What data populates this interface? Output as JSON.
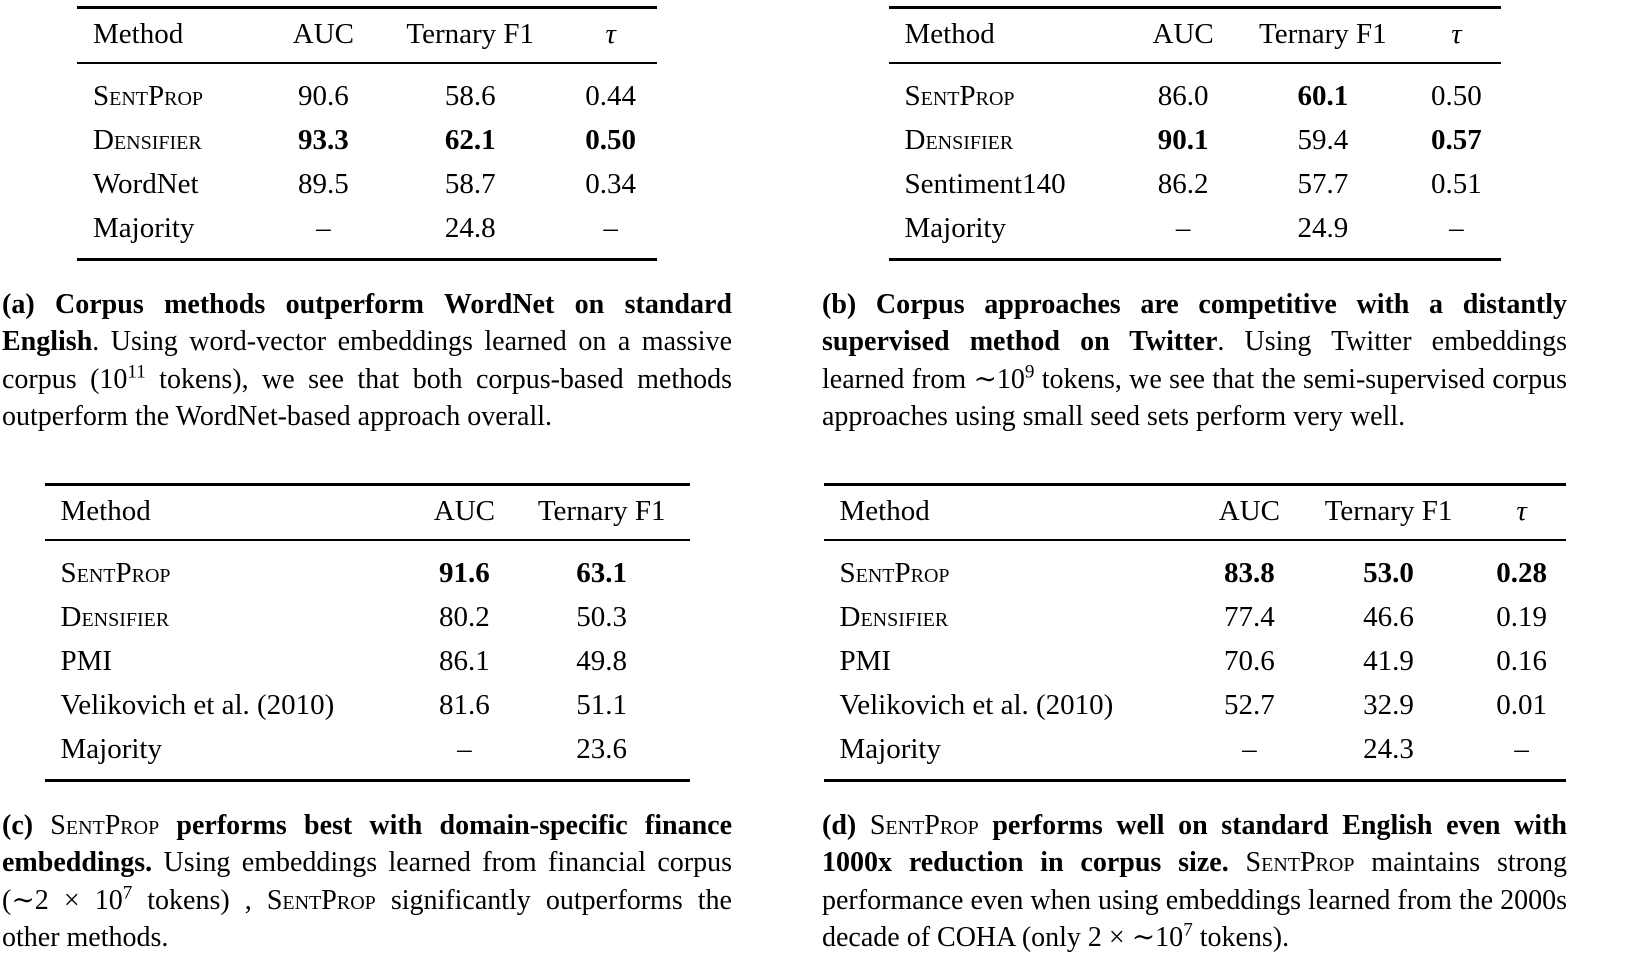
{
  "page": {
    "background": "#ffffff",
    "text_color": "#000000"
  },
  "tables": {
    "a": {
      "columns": [
        {
          "v": "Method"
        },
        {
          "v": "AUC"
        },
        {
          "v": "Ternary F1"
        },
        {
          "v": "τ",
          "i": true,
          "name": "tau"
        }
      ],
      "rows": [
        [
          {
            "v": "SentProp",
            "sc": true
          },
          {
            "v": "90.6"
          },
          {
            "v": "58.6"
          },
          {
            "v": "0.44"
          }
        ],
        [
          {
            "v": "Densifier",
            "sc": true
          },
          {
            "v": "93.3",
            "b": true
          },
          {
            "v": "62.1",
            "b": true
          },
          {
            "v": "0.50",
            "b": true
          }
        ],
        [
          {
            "v": "WordNet"
          },
          {
            "v": "89.5"
          },
          {
            "v": "58.7"
          },
          {
            "v": "0.34"
          }
        ],
        [
          {
            "v": "Majority"
          },
          {
            "v": "–"
          },
          {
            "v": "24.8"
          },
          {
            "v": "–"
          }
        ]
      ]
    },
    "b": {
      "columns": [
        {
          "v": "Method"
        },
        {
          "v": "AUC"
        },
        {
          "v": "Ternary F1"
        },
        {
          "v": "τ",
          "i": true,
          "name": "tau"
        }
      ],
      "rows": [
        [
          {
            "v": "SentProp",
            "sc": true
          },
          {
            "v": "86.0"
          },
          {
            "v": "60.1",
            "b": true
          },
          {
            "v": "0.50"
          }
        ],
        [
          {
            "v": "Densifier",
            "sc": true
          },
          {
            "v": "90.1",
            "b": true
          },
          {
            "v": "59.4"
          },
          {
            "v": "0.57",
            "b": true
          }
        ],
        [
          {
            "v": "Sentiment140"
          },
          {
            "v": "86.2"
          },
          {
            "v": "57.7"
          },
          {
            "v": "0.51"
          }
        ],
        [
          {
            "v": "Majority"
          },
          {
            "v": "–"
          },
          {
            "v": "24.9"
          },
          {
            "v": "–"
          }
        ]
      ]
    },
    "c": {
      "columns": [
        {
          "v": "Method"
        },
        {
          "v": "AUC"
        },
        {
          "v": "Ternary F1"
        }
      ],
      "rows": [
        [
          {
            "v": "SentProp",
            "sc": true
          },
          {
            "v": "91.6",
            "b": true
          },
          {
            "v": "63.1",
            "b": true
          }
        ],
        [
          {
            "v": "Densifier",
            "sc": true
          },
          {
            "v": "80.2"
          },
          {
            "v": "50.3"
          }
        ],
        [
          {
            "v": "PMI"
          },
          {
            "v": "86.1"
          },
          {
            "v": "49.8"
          }
        ],
        [
          {
            "v": "Velikovich et al. (2010)"
          },
          {
            "v": "81.6"
          },
          {
            "v": "51.1"
          }
        ],
        [
          {
            "v": "Majority"
          },
          {
            "v": "–"
          },
          {
            "v": "23.6"
          }
        ]
      ]
    },
    "d": {
      "columns": [
        {
          "v": "Method"
        },
        {
          "v": "AUC"
        },
        {
          "v": "Ternary F1"
        },
        {
          "v": "τ",
          "i": true,
          "name": "tau"
        }
      ],
      "rows": [
        [
          {
            "v": "SentProp",
            "sc": true
          },
          {
            "v": "83.8",
            "b": true
          },
          {
            "v": "53.0",
            "b": true
          },
          {
            "v": "0.28",
            "b": true
          }
        ],
        [
          {
            "v": "Densifier",
            "sc": true
          },
          {
            "v": "77.4"
          },
          {
            "v": "46.6"
          },
          {
            "v": "0.19"
          }
        ],
        [
          {
            "v": "PMI"
          },
          {
            "v": "70.6"
          },
          {
            "v": "41.9"
          },
          {
            "v": "0.16"
          }
        ],
        [
          {
            "v": "Velikovich et al. (2010)"
          },
          {
            "v": "52.7"
          },
          {
            "v": "32.9"
          },
          {
            "v": "0.01"
          }
        ],
        [
          {
            "v": "Majority"
          },
          {
            "v": "–"
          },
          {
            "v": "24.3"
          },
          {
            "v": "–"
          }
        ]
      ]
    }
  },
  "captions": {
    "a": [
      {
        "t": "(a) Corpus methods outperform WordNet on standard English",
        "b": true
      },
      {
        "t": ". Using word-vector embeddings learned on a massive corpus (10"
      },
      {
        "t": "11",
        "sup": true
      },
      {
        "t": " tokens), we see that both corpus-based methods outperform the WordNet-based approach overall."
      }
    ],
    "b": [
      {
        "t": "(b) Corpus approaches are competitive with a distantly supervised method on Twitter",
        "b": true
      },
      {
        "t": ". Using Twitter embeddings learned from ∼10"
      },
      {
        "t": "9",
        "sup": true
      },
      {
        "t": " tokens, we see that the semi-supervised corpus approaches using small seed sets perform very well."
      }
    ],
    "c": [
      {
        "t": "(c) ",
        "b": true
      },
      {
        "t": "SentProp",
        "sc": true
      },
      {
        "t": " performs best with domain-specific finance embeddings.",
        "b": true
      },
      {
        "t": " Using embeddings learned from financial corpus (∼2 × 10"
      },
      {
        "t": "7",
        "sup": true
      },
      {
        "t": " tokens) , "
      },
      {
        "t": "SentProp",
        "sc": true
      },
      {
        "t": " significantly outperforms the other methods."
      }
    ],
    "d": [
      {
        "t": "(d) ",
        "b": true
      },
      {
        "t": "SentProp",
        "sc": true
      },
      {
        "t": " performs well on standard English even with 1000x reduction in corpus size.",
        "b": true
      },
      {
        "t": " "
      },
      {
        "t": "SentProp",
        "sc": true
      },
      {
        "t": " maintains strong performance even when using embeddings learned from the 2000s decade of COHA (only 2 × ∼10"
      },
      {
        "t": "7",
        "sup": true
      },
      {
        "t": " tokens)."
      }
    ]
  }
}
